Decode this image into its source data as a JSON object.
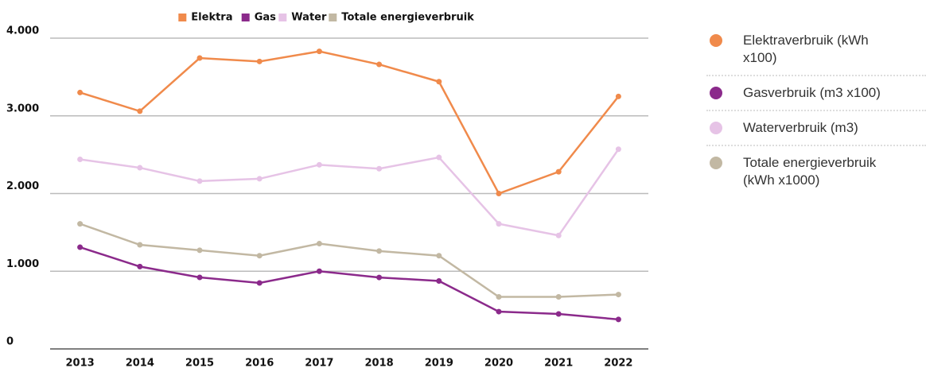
{
  "chart_data": {
    "type": "line",
    "categories": [
      "2013",
      "2014",
      "2015",
      "2016",
      "2017",
      "2018",
      "2019",
      "2020",
      "2021",
      "2022"
    ],
    "series": [
      {
        "name": "Elektra",
        "color": "#f08a4b",
        "values": [
          3300,
          3060,
          3744,
          3700,
          3830,
          3662,
          3440,
          2000,
          2280,
          3250
        ]
      },
      {
        "name": "Gas",
        "color": "#8b2a8b",
        "values": [
          1309,
          1060,
          921,
          849,
          1000,
          920,
          875,
          480,
          450,
          380
        ]
      },
      {
        "name": "Water",
        "color": "#e6c3e6",
        "values": [
          2440,
          2332,
          2160,
          2190,
          2370,
          2320,
          2465,
          1610,
          1460,
          2570
        ]
      },
      {
        "name": "Totale energieverbruik",
        "color": "#c2b8a3",
        "values": [
          1610,
          1340,
          1270,
          1200,
          1355,
          1260,
          1200,
          670,
          670,
          700
        ]
      }
    ],
    "side_legend": [
      "Elektraverbruik (kWh x100)",
      "Gasverbruik (m3 x100)",
      "Waterverbruik (m3)",
      "Totale energieverbruik (kWh x1000)"
    ],
    "ylim": [
      0,
      4000
    ],
    "yticks": [
      0,
      {
        "value": 1000,
        "label": "1.000"
      },
      {
        "value": 2000,
        "label": "2.000"
      },
      {
        "value": 3000,
        "label": "3.000"
      },
      {
        "value": 4000,
        "label": "4.000"
      }
    ],
    "grid": true,
    "legend": "top"
  }
}
